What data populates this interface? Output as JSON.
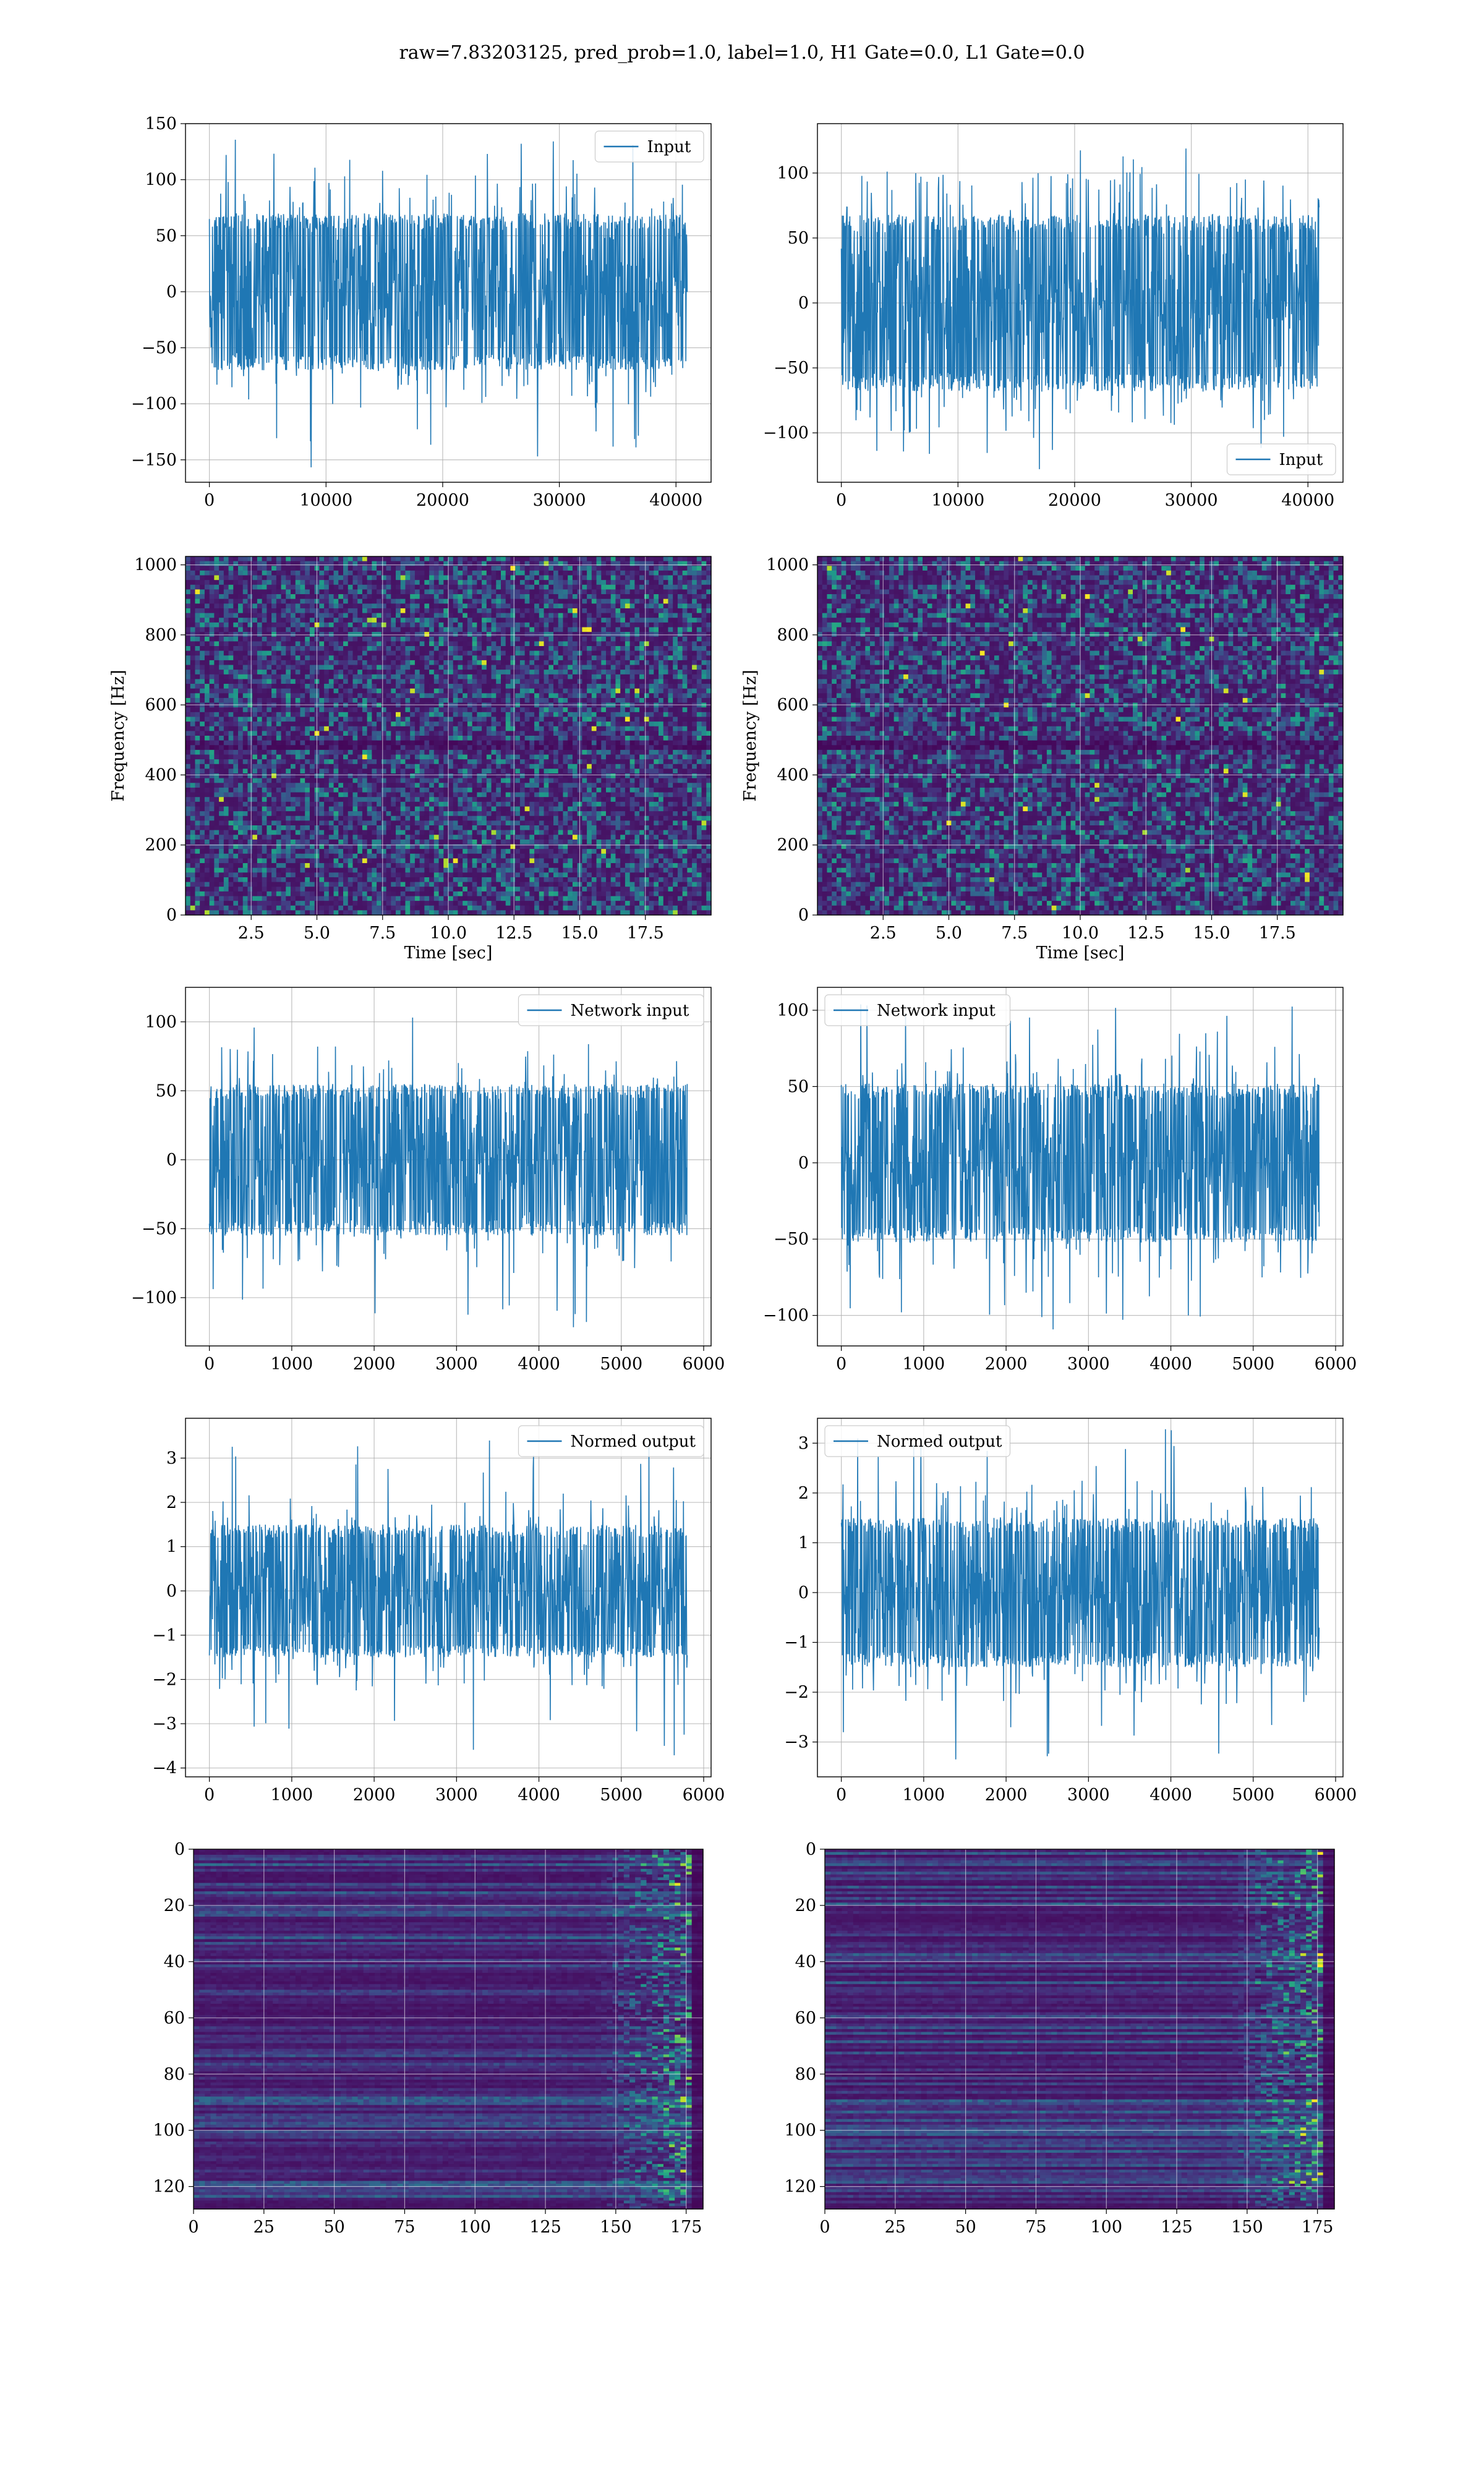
{
  "title": "raw=7.83203125, pred_prob=1.0, label=1.0, H1 Gate=0.0, L1 Gate=0.0",
  "colors": {
    "line": "#1f77b4",
    "grid": "#b0b0b0",
    "viridis_low": "#440154",
    "viridis_mid": "#31688e",
    "viridis_green": "#35b779",
    "viridis_high": "#fde725"
  },
  "chart_data": [
    {
      "type": "line",
      "legend": "Input",
      "legend_loc": "upper right",
      "x_range": [
        0,
        40960
      ],
      "xlim": [
        -2048,
        43008
      ],
      "ylim": [
        -170,
        150
      ],
      "xticks": [
        0,
        10000,
        20000,
        30000,
        40000
      ],
      "yticks": [
        -150,
        -100,
        -50,
        0,
        50,
        100,
        150
      ],
      "y_envelope": {
        "core": 70,
        "min": -158,
        "max": 136
      },
      "grid": true
    },
    {
      "type": "line",
      "legend": "Input",
      "legend_loc": "lower right",
      "x_range": [
        0,
        40960
      ],
      "xlim": [
        -2048,
        43008
      ],
      "ylim": [
        -138,
        138
      ],
      "xticks": [
        0,
        10000,
        20000,
        30000,
        40000
      ],
      "yticks": [
        -100,
        -50,
        0,
        50,
        100
      ],
      "y_envelope": {
        "core": 68,
        "min": -128,
        "max": 124
      },
      "grid": true
    },
    {
      "type": "heatmap",
      "xlabel": "Time [sec]",
      "ylabel": "Frequency [Hz]",
      "xlim": [
        0,
        20
      ],
      "ylim": [
        0,
        1024
      ],
      "xticks": [
        "2.5",
        "5.0",
        "7.5",
        "10.0",
        "12.5",
        "15.0",
        "17.5"
      ],
      "yticks": [
        "0",
        "200",
        "400",
        "600",
        "800",
        "1000"
      ],
      "grid": true
    },
    {
      "type": "heatmap",
      "xlabel": "Time [sec]",
      "ylabel": "Frequency [Hz]",
      "xlim": [
        0,
        20
      ],
      "ylim": [
        0,
        1024
      ],
      "xticks": [
        "2.5",
        "5.0",
        "7.5",
        "10.0",
        "12.5",
        "15.0",
        "17.5"
      ],
      "yticks": [
        "0",
        "200",
        "400",
        "600",
        "800",
        "1000"
      ],
      "grid": true
    },
    {
      "type": "line",
      "legend": "Network input",
      "legend_loc": "upper right",
      "x_range": [
        0,
        5800
      ],
      "xlim": [
        -290,
        6090
      ],
      "ylim": [
        -135,
        125
      ],
      "xticks": [
        0,
        1000,
        2000,
        3000,
        4000,
        5000,
        6000
      ],
      "yticks": [
        -100,
        -50,
        0,
        50,
        100
      ],
      "y_envelope": {
        "core": 55,
        "min": -122,
        "max": 108
      },
      "grid": true
    },
    {
      "type": "line",
      "legend": "Network input",
      "legend_loc": "upper left",
      "x_range": [
        0,
        5800
      ],
      "xlim": [
        -290,
        6090
      ],
      "ylim": [
        -120,
        115
      ],
      "xticks": [
        0,
        1000,
        2000,
        3000,
        4000,
        5000,
        6000
      ],
      "yticks": [
        -100,
        -50,
        0,
        50,
        100
      ],
      "y_envelope": {
        "core": 52,
        "min": -110,
        "max": 104
      },
      "grid": true
    },
    {
      "type": "line",
      "legend": "Normed output",
      "legend_loc": "upper right",
      "x_range": [
        0,
        5800
      ],
      "xlim": [
        -290,
        6090
      ],
      "ylim": [
        -4.2,
        3.9
      ],
      "xticks": [
        0,
        1000,
        2000,
        3000,
        4000,
        5000,
        6000
      ],
      "yticks": [
        -4,
        -3,
        -2,
        -1,
        0,
        1,
        2,
        3
      ],
      "y_envelope": {
        "core": 1.5,
        "min": -3.8,
        "max": 3.4
      },
      "grid": true
    },
    {
      "type": "line",
      "legend": "Normed output",
      "legend_loc": "upper left",
      "x_range": [
        0,
        5800
      ],
      "xlim": [
        -290,
        6090
      ],
      "ylim": [
        -3.7,
        3.5
      ],
      "xticks": [
        0,
        1000,
        2000,
        3000,
        4000,
        5000,
        6000
      ],
      "yticks": [
        -3,
        -2,
        -1,
        0,
        1,
        2,
        3
      ],
      "y_envelope": {
        "core": 1.5,
        "min": -3.4,
        "max": 3.3
      },
      "grid": true
    },
    {
      "type": "heatmap",
      "xlim": [
        0,
        181
      ],
      "ylim": [
        128,
        0
      ],
      "xticks": [
        "0",
        "25",
        "50",
        "75",
        "100",
        "125",
        "150",
        "175"
      ],
      "yticks": [
        "0",
        "20",
        "40",
        "60",
        "80",
        "100",
        "120"
      ],
      "grid": true
    },
    {
      "type": "heatmap",
      "xlim": [
        0,
        181
      ],
      "ylim": [
        128,
        0
      ],
      "xticks": [
        "0",
        "25",
        "50",
        "75",
        "100",
        "125",
        "150",
        "175"
      ],
      "yticks": [
        "0",
        "20",
        "40",
        "60",
        "80",
        "100",
        "120"
      ],
      "grid": true
    }
  ]
}
